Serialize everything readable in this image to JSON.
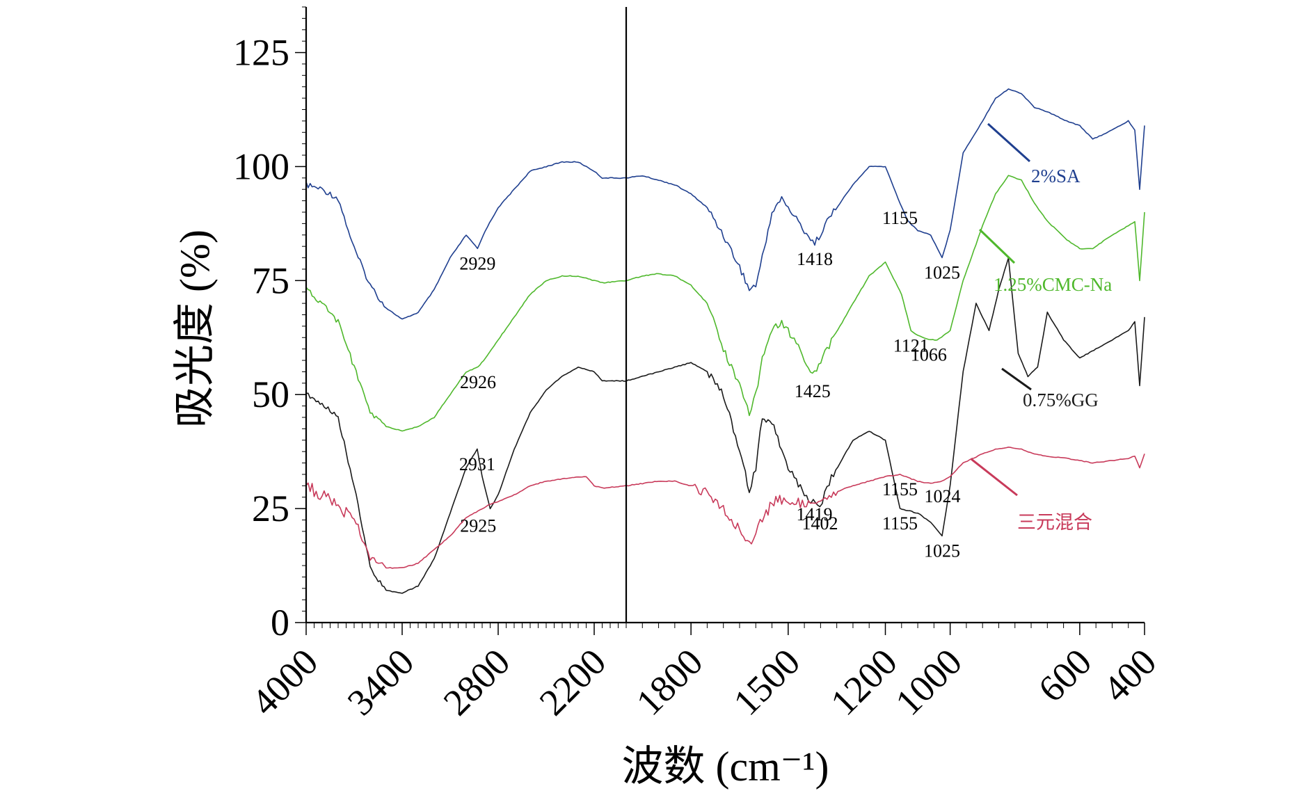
{
  "chart_data": {
    "type": "line",
    "xlabel": "波数 (cm⁻¹)",
    "ylabel": "吸光度 (%)",
    "xlim": [
      4000,
      400
    ],
    "ylim": [
      0,
      135
    ],
    "x_axis_note": "broken scale: linear 4000–2000 cm⁻¹ and linear 2000–400 cm⁻¹ on separate segments",
    "x_ticks": [
      4000,
      3400,
      2800,
      2200,
      1800,
      1500,
      1200,
      1000,
      600,
      400
    ],
    "y_ticks": [
      0,
      25,
      50,
      75,
      100,
      125
    ],
    "break_marker_at": 2000,
    "series": [
      {
        "name": "2%SA",
        "color": "#1f3f8f",
        "x": [
          4000,
          3900,
          3800,
          3700,
          3600,
          3500,
          3400,
          3300,
          3200,
          3100,
          3000,
          2929,
          2880,
          2800,
          2700,
          2600,
          2500,
          2400,
          2300,
          2200,
          2150,
          2000,
          1950,
          1900,
          1850,
          1800,
          1750,
          1700,
          1650,
          1620,
          1600,
          1580,
          1550,
          1520,
          1500,
          1450,
          1418,
          1380,
          1300,
          1250,
          1200,
          1155,
          1130,
          1100,
          1060,
          1025,
          1000,
          960,
          900,
          860,
          820,
          780,
          740,
          700,
          640,
          600,
          560,
          500,
          450,
          430,
          415,
          400
        ],
        "y": [
          96,
          95,
          93,
          82,
          74,
          69,
          66.5,
          68,
          73,
          80,
          85,
          82,
          86,
          91,
          95,
          99,
          100,
          101,
          101,
          99,
          97.5,
          97.5,
          98,
          97,
          96,
          94,
          91,
          85,
          78,
          73,
          74,
          80,
          90,
          93,
          91,
          86,
          83,
          88,
          96,
          100,
          100,
          92,
          88,
          86,
          85,
          80,
          86,
          103,
          110,
          115,
          117,
          116,
          113,
          112,
          110,
          109,
          106,
          108,
          110,
          108,
          95,
          109
        ]
      },
      {
        "name": "1.25%CMC-Na",
        "color": "#4fb82c",
        "x": [
          4000,
          3900,
          3800,
          3700,
          3600,
          3500,
          3400,
          3300,
          3200,
          3100,
          3000,
          2926,
          2880,
          2800,
          2700,
          2600,
          2500,
          2400,
          2300,
          2200,
          2150,
          2000,
          1950,
          1900,
          1850,
          1800,
          1750,
          1700,
          1650,
          1620,
          1600,
          1580,
          1550,
          1520,
          1500,
          1450,
          1425,
          1380,
          1300,
          1250,
          1200,
          1150,
          1121,
          1100,
          1066,
          1040,
          1000,
          960,
          900,
          860,
          820,
          780,
          740,
          700,
          640,
          600,
          560,
          500,
          450,
          430,
          415,
          400
        ],
        "y": [
          73,
          70,
          66,
          56,
          46,
          43,
          42,
          43,
          45,
          50,
          55,
          56,
          58,
          62,
          67,
          72,
          75,
          76,
          76,
          75,
          74.5,
          75,
          76,
          76.5,
          76,
          74,
          70,
          60,
          52,
          46,
          50,
          58,
          64,
          66,
          64,
          58,
          54,
          60,
          70,
          76,
          79,
          72,
          64,
          63,
          62,
          62,
          64,
          75,
          87,
          94,
          98,
          97,
          92,
          88,
          84,
          82,
          82,
          85,
          87,
          88,
          75,
          90
        ]
      },
      {
        "name": "0.75%GG",
        "color": "#1a1a1a",
        "x": [
          4000,
          3900,
          3800,
          3700,
          3600,
          3500,
          3400,
          3300,
          3200,
          3100,
          3000,
          2931,
          2900,
          2850,
          2800,
          2700,
          2600,
          2500,
          2400,
          2300,
          2200,
          2150,
          2000,
          1950,
          1900,
          1850,
          1800,
          1750,
          1700,
          1650,
          1620,
          1600,
          1580,
          1550,
          1520,
          1500,
          1450,
          1402,
          1380,
          1300,
          1250,
          1200,
          1155,
          1100,
          1060,
          1025,
          1000,
          960,
          920,
          880,
          850,
          820,
          790,
          760,
          730,
          700,
          650,
          600,
          550,
          500,
          450,
          430,
          415,
          400
        ],
        "y": [
          50,
          48,
          45,
          30,
          12,
          7,
          6.5,
          8,
          14,
          24,
          34,
          38,
          32,
          25,
          28,
          38,
          46,
          51,
          54,
          56,
          55,
          53,
          53,
          54,
          55,
          56,
          57,
          55,
          50,
          38,
          29,
          34,
          45,
          44,
          38,
          34,
          28,
          25,
          30,
          40,
          42,
          40,
          25,
          24,
          22,
          19,
          30,
          55,
          70,
          64,
          73,
          80,
          59,
          54,
          56,
          68,
          62,
          58,
          60,
          62,
          64,
          66,
          52,
          67
        ]
      },
      {
        "name": "三元混合",
        "color": "#c83a5a",
        "x": [
          4000,
          3900,
          3800,
          3700,
          3600,
          3500,
          3400,
          3300,
          3200,
          3100,
          3000,
          2925,
          2900,
          2850,
          2800,
          2700,
          2600,
          2500,
          2400,
          2300,
          2250,
          2200,
          2150,
          2000,
          1950,
          1900,
          1850,
          1800,
          1750,
          1700,
          1650,
          1620,
          1600,
          1580,
          1550,
          1520,
          1500,
          1450,
          1419,
          1380,
          1300,
          1250,
          1200,
          1155,
          1100,
          1060,
          1024,
          1000,
          960,
          900,
          860,
          820,
          780,
          740,
          700,
          640,
          600,
          560,
          500,
          450,
          430,
          415,
          400
        ],
        "y": [
          30,
          28,
          26,
          22,
          15,
          12,
          12,
          13,
          16,
          19,
          23,
          24.5,
          25,
          26,
          26.5,
          28,
          30,
          31,
          31.5,
          32,
          32,
          30,
          29.5,
          30,
          30.5,
          31,
          31,
          30,
          28,
          25,
          20,
          17,
          20,
          23,
          26,
          27,
          26,
          26,
          27,
          28,
          30,
          31,
          32,
          32.5,
          31,
          30.5,
          31,
          32,
          35,
          37,
          38,
          38.5,
          38,
          37,
          36.5,
          36,
          35.5,
          35,
          35.5,
          36,
          36.5,
          34,
          37
        ]
      }
    ],
    "peak_labels": [
      {
        "text": "2929",
        "series": "2%SA",
        "x": 2929
      },
      {
        "text": "1418",
        "series": "2%SA",
        "x": 1418
      },
      {
        "text": "1155",
        "series": "2%SA",
        "x": 1155
      },
      {
        "text": "1025",
        "series": "2%SA",
        "x": 1025
      },
      {
        "text": "2926",
        "series": "1.25%CMC-Na",
        "x": 2926
      },
      {
        "text": "1425",
        "series": "1.25%CMC-Na",
        "x": 1425
      },
      {
        "text": "1121",
        "series": "1.25%CMC-Na",
        "x": 1121
      },
      {
        "text": "1066",
        "series": "1.25%CMC-Na",
        "x": 1066
      },
      {
        "text": "2931",
        "series": "0.75%GG",
        "x": 2931
      },
      {
        "text": "1402",
        "series": "0.75%GG",
        "x": 1402
      },
      {
        "text": "1155",
        "series": "0.75%GG",
        "x": 1155
      },
      {
        "text": "1025",
        "series": "0.75%GG",
        "x": 1025
      },
      {
        "text": "2925",
        "series": "三元混合",
        "x": 2925
      },
      {
        "text": "1419",
        "series": "三元混合",
        "x": 1419
      },
      {
        "text": "1155",
        "series": "三元混合",
        "x": 1155
      },
      {
        "text": "1024",
        "series": "三元混合",
        "x": 1024
      }
    ],
    "legend": [
      {
        "text": "2%SA",
        "color": "#1f3f8f"
      },
      {
        "text": "1.25%CMC-Na",
        "color": "#4fb82c"
      },
      {
        "text": "0.75%GG",
        "color": "#1a1a1a"
      },
      {
        "text": "三元混合",
        "color": "#c83a5a"
      }
    ],
    "legend_placement": "inline-right",
    "grid": false
  }
}
